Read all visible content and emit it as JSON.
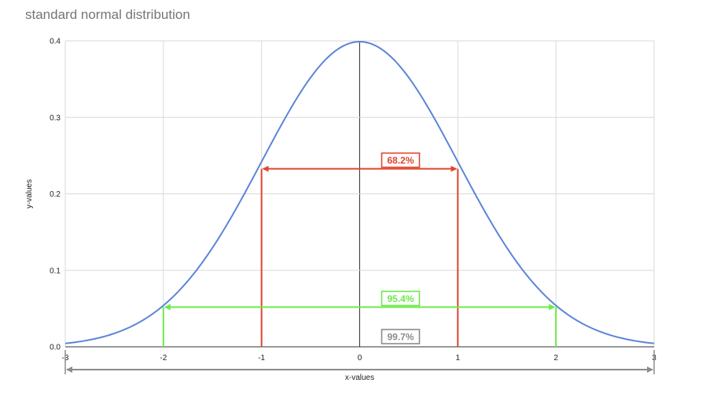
{
  "chart_data": {
    "type": "line",
    "title": "standard normal distribution",
    "xlabel": "x-values",
    "ylabel": "y-values",
    "xlim": [
      -3,
      3
    ],
    "ylim": [
      0,
      0.4
    ],
    "x_ticks": [
      "-3",
      "-2",
      "-1",
      "0",
      "1",
      "2",
      "3"
    ],
    "y_ticks": [
      "0.0",
      "0.1",
      "0.2",
      "0.3",
      "0.4"
    ],
    "grid": true,
    "series": [
      {
        "color": "#5b85d9",
        "x": [
          -3,
          -2.75,
          -2.5,
          -2.25,
          -2,
          -1.75,
          -1.5,
          -1.25,
          -1,
          -0.75,
          -0.5,
          -0.25,
          0,
          0.25,
          0.5,
          0.75,
          1,
          1.25,
          1.5,
          1.75,
          2,
          2.25,
          2.5,
          2.75,
          3
        ],
        "y": [
          0.0044,
          0.0091,
          0.0175,
          0.0317,
          0.054,
          0.0863,
          0.1295,
          0.1826,
          0.242,
          0.3011,
          0.3521,
          0.3867,
          0.3989,
          0.3867,
          0.3521,
          0.3011,
          0.242,
          0.1826,
          0.1295,
          0.0863,
          0.054,
          0.0317,
          0.0175,
          0.0091,
          0.0044
        ]
      }
    ],
    "annotations": [
      {
        "label": "68.2%",
        "color": "#e0452e",
        "from": -1,
        "to": 1,
        "y": 0.242
      },
      {
        "label": "95.4%",
        "color": "#6ee84a",
        "from": -2,
        "to": 2,
        "y": 0.054
      },
      {
        "label": "99.7%",
        "color": "#8c8c8c",
        "from": -3,
        "to": 3,
        "y": 0
      }
    ]
  }
}
